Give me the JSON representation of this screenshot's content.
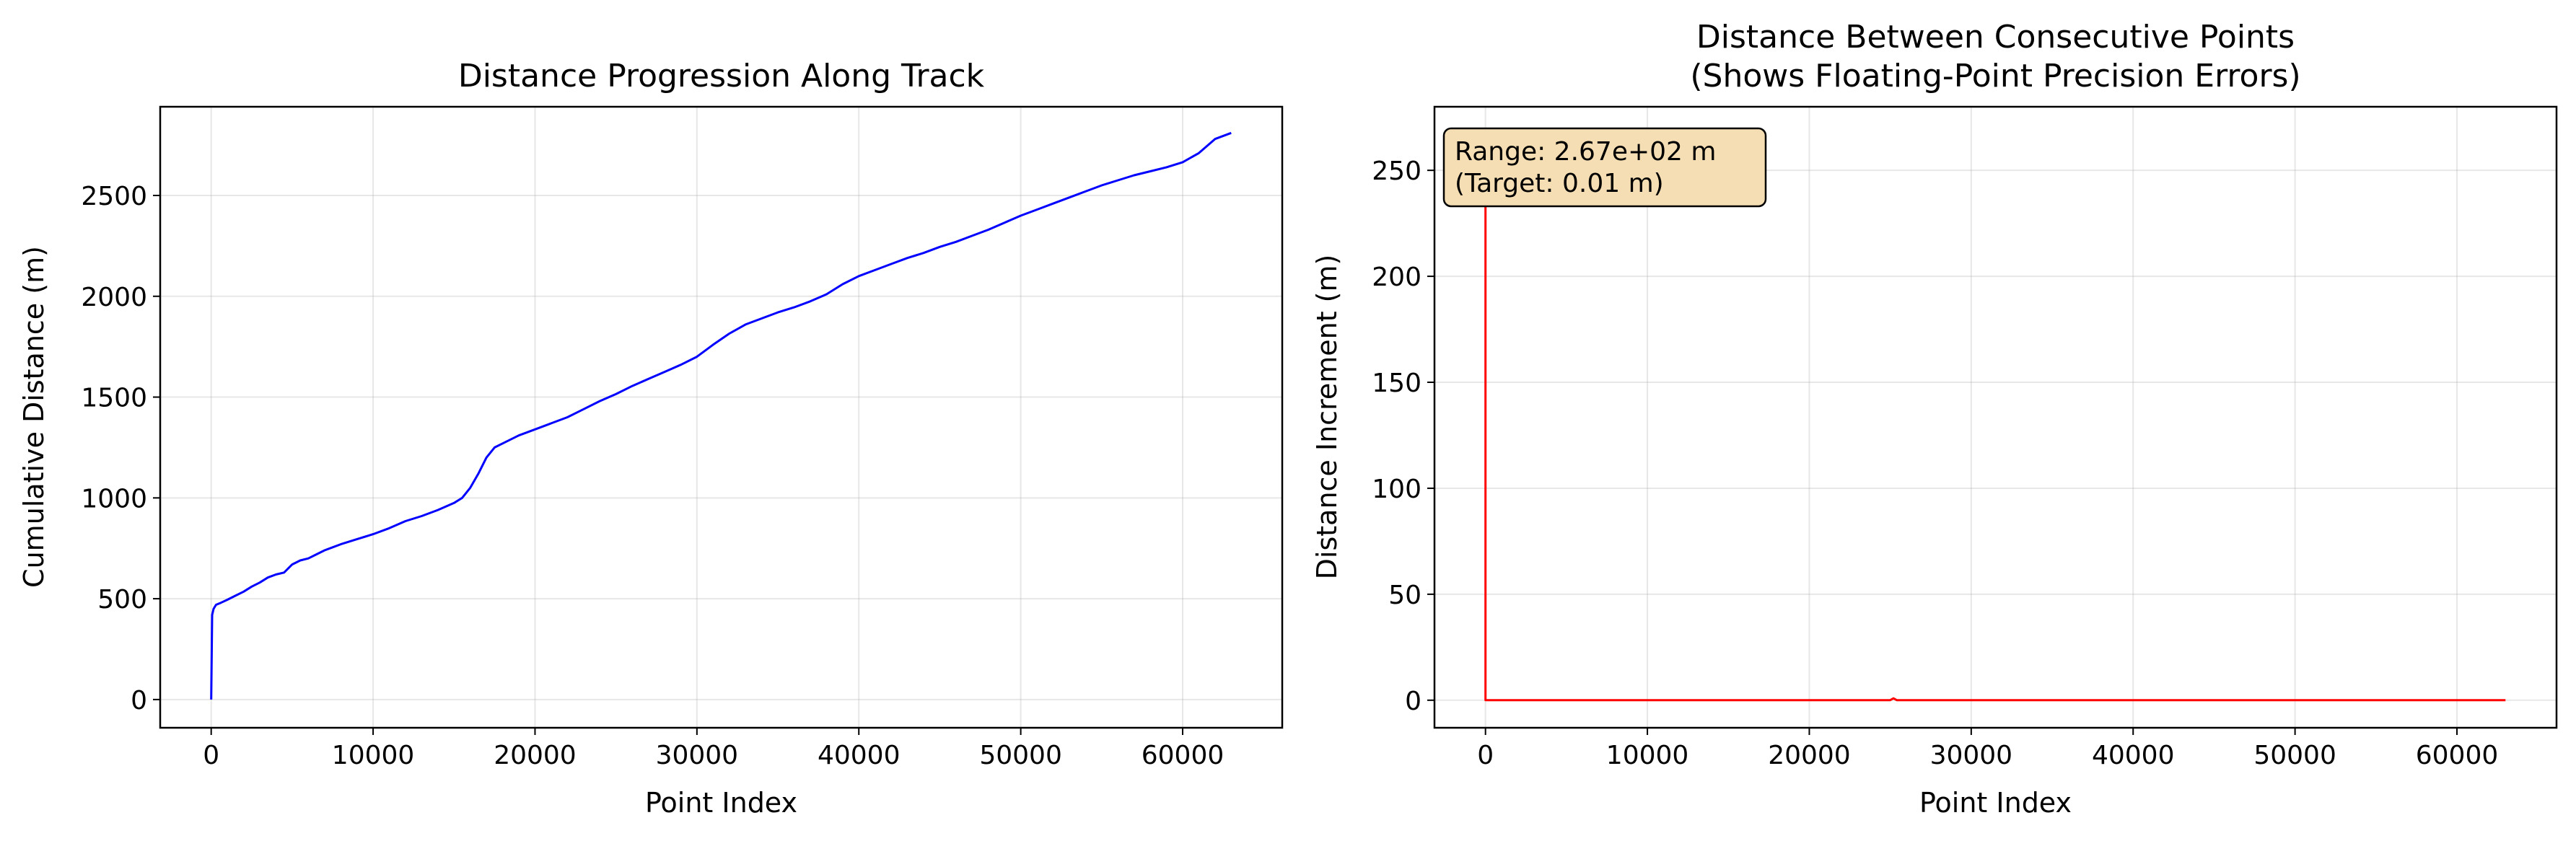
{
  "chart_data": [
    {
      "type": "line",
      "title": "Distance Progression Along Track",
      "xlabel": "Point Index",
      "ylabel": "Cumulative Distance (m)",
      "xlim": [
        -3150,
        66150
      ],
      "ylim": [
        -140,
        2940
      ],
      "xticks": [
        0,
        10000,
        20000,
        30000,
        40000,
        50000,
        60000
      ],
      "yticks": [
        0,
        500,
        1000,
        1500,
        2000,
        2500
      ],
      "grid": true,
      "color": "#0000ff",
      "series": [
        {
          "x": [
            0,
            60,
            150,
            300,
            600,
            1000,
            1500,
            2000,
            2500,
            3000,
            3500,
            4000,
            4500,
            5000,
            5500,
            6000,
            6500,
            7000,
            7500,
            8000,
            9000,
            10000,
            11000,
            12000,
            13000,
            14000,
            15000,
            15500,
            16000,
            16500,
            17000,
            17500,
            18000,
            19000,
            20000,
            21000,
            22000,
            23000,
            24000,
            25000,
            26000,
            27000,
            28000,
            29000,
            30000,
            31000,
            32000,
            33000,
            34000,
            35000,
            36000,
            37000,
            38000,
            39000,
            40000,
            41000,
            42000,
            43000,
            44000,
            45000,
            46000,
            47000,
            48000,
            49000,
            50000,
            51000,
            52000,
            53000,
            54000,
            55000,
            56000,
            57000,
            58000,
            59000,
            60000,
            61000,
            62000,
            63000
          ],
          "y": [
            0,
            420,
            450,
            470,
            480,
            495,
            515,
            535,
            560,
            580,
            605,
            620,
            630,
            670,
            690,
            700,
            720,
            740,
            755,
            770,
            795,
            820,
            850,
            885,
            910,
            940,
            975,
            1000,
            1050,
            1120,
            1200,
            1250,
            1270,
            1310,
            1340,
            1370,
            1400,
            1440,
            1480,
            1515,
            1555,
            1590,
            1625,
            1660,
            1700,
            1760,
            1815,
            1860,
            1890,
            1920,
            1945,
            1975,
            2010,
            2060,
            2100,
            2130,
            2160,
            2190,
            2215,
            2245,
            2270,
            2300,
            2330,
            2365,
            2400,
            2430,
            2460,
            2490,
            2520,
            2550,
            2575,
            2600,
            2620,
            2640,
            2665,
            2710,
            2780,
            2810
          ]
        }
      ]
    },
    {
      "type": "line",
      "title": "Distance Between Consecutive Points\n(Shows Floating-Point Precision Errors)",
      "title_lines": [
        "Distance Between Consecutive Points",
        "(Shows Floating-Point Precision Errors)"
      ],
      "xlabel": "Point Index",
      "ylabel": "Distance Increment (m)",
      "xlim": [
        -3150,
        66150
      ],
      "ylim": [
        -13,
        280
      ],
      "xticks": [
        0,
        10000,
        20000,
        30000,
        40000,
        50000,
        60000
      ],
      "yticks": [
        0,
        50,
        100,
        150,
        200,
        250
      ],
      "grid": true,
      "color": "#ff0000",
      "annotation": {
        "lines": [
          "Range: 2.67e+02 m",
          "(Target: 0.01 m)"
        ],
        "box_fill": "#f5deb3",
        "position": "top-left"
      },
      "series": [
        {
          "x": [
            0,
            1,
            2,
            5000,
            10000,
            15000,
            20000,
            25000,
            25200,
            25400,
            30000,
            35000,
            40000,
            45000,
            50000,
            55000,
            60000,
            63000
          ],
          "y": [
            267,
            0.8,
            0.04,
            0.05,
            0.04,
            0.05,
            0.04,
            0.05,
            0.9,
            0.05,
            0.04,
            0.05,
            0.04,
            0.05,
            0.04,
            0.05,
            0.04,
            0.05
          ]
        }
      ]
    }
  ]
}
